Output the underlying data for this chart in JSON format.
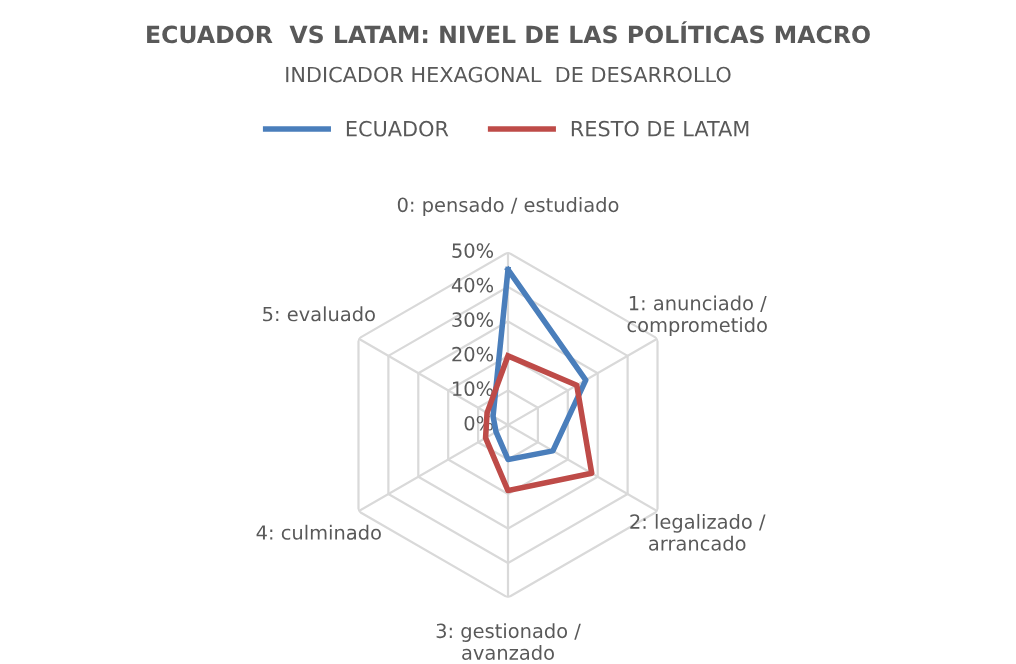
{
  "chart_data": {
    "type": "radar",
    "title": "ECUADOR  VS LATAM: NIVEL DE LAS POLÍTICAS MACRO",
    "subtitle": "INDICADOR HEXAGONAL  DE DESARROLLO",
    "categories": [
      "0: pensado / estudiado",
      "1: anunciado /\ncomprometido",
      "2: legalizado /\narrancado",
      "3: gestionado /\navanzado",
      "4: culminado",
      "5: evaluado"
    ],
    "series": [
      {
        "name": "ECUADOR",
        "color": "#4a7ebb",
        "values": [
          45,
          26,
          15,
          10,
          4,
          5
        ]
      },
      {
        "name": "RESTO DE LATAM",
        "color": "#be4b48",
        "values": [
          20,
          23,
          28,
          19,
          7.5,
          7
        ]
      }
    ],
    "ylim": [
      0,
      50
    ],
    "yticks": [
      {
        "value": 0,
        "label": "0%"
      },
      {
        "value": 10,
        "label": "10%"
      },
      {
        "value": 20,
        "label": "20%"
      },
      {
        "value": 30,
        "label": "30%"
      },
      {
        "value": 40,
        "label": "40%"
      },
      {
        "value": 50,
        "label": "50%"
      }
    ],
    "grid": true,
    "legend": "top"
  }
}
